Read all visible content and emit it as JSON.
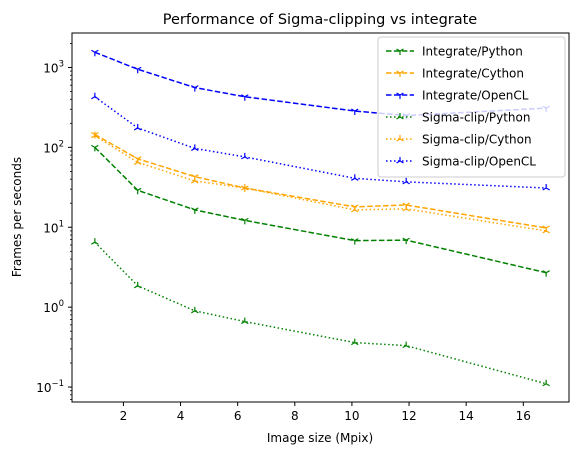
{
  "chart_data": {
    "type": "line",
    "title": "Performance of Sigma-clipping vs integrate",
    "xlabel": "Image size (Mpix)",
    "ylabel": "Frames per seconds",
    "xlim": [
      0.2,
      17.6
    ],
    "ylim": [
      0.065,
      2700
    ],
    "yscale": "log",
    "grid": false,
    "legend_position": "top-right",
    "x_ticks": [
      2,
      4,
      6,
      8,
      10,
      12,
      14,
      16
    ],
    "y_ticks": [
      {
        "value": 0.1,
        "base": "10",
        "exp": "−1"
      },
      {
        "value": 1,
        "base": "10",
        "exp": "0"
      },
      {
        "value": 10,
        "base": "10",
        "exp": "1"
      },
      {
        "value": 100,
        "base": "10",
        "exp": "2"
      },
      {
        "value": 1000,
        "base": "10",
        "exp": "3"
      }
    ],
    "x": [
      1.0,
      2.5,
      4.5,
      6.25,
      10.1,
      11.9,
      16.8
    ],
    "series": [
      {
        "name": "Integrate/Python",
        "color": "#008000",
        "style": "dashed",
        "marker": "tri_down",
        "values": [
          100,
          29,
          16.5,
          12.2,
          6.8,
          6.9,
          2.7
        ]
      },
      {
        "name": "Integrate/Cython",
        "color": "#ffa500",
        "style": "dashed",
        "marker": "tri_down",
        "values": [
          145,
          72,
          43,
          31,
          18,
          19,
          9.8
        ]
      },
      {
        "name": "Integrate/OpenCL",
        "color": "#0000ff",
        "style": "dashed",
        "marker": "tri_down",
        "values": [
          1550,
          950,
          560,
          430,
          285,
          250,
          310
        ]
      },
      {
        "name": "Sigma-clip/Python",
        "color": "#008000",
        "style": "dotted",
        "marker": "tri_up",
        "values": [
          6.5,
          1.85,
          0.9,
          0.66,
          0.36,
          0.33,
          0.11
        ]
      },
      {
        "name": "Sigma-clip/Cython",
        "color": "#ffa500",
        "style": "dotted",
        "marker": "tri_up",
        "values": [
          140,
          65,
          38,
          31,
          16.5,
          17,
          9.0
        ]
      },
      {
        "name": "Sigma-clip/OpenCL",
        "color": "#0000ff",
        "style": "dotted",
        "marker": "tri_up",
        "values": [
          430,
          175,
          97,
          76,
          41,
          37,
          31
        ]
      }
    ]
  }
}
